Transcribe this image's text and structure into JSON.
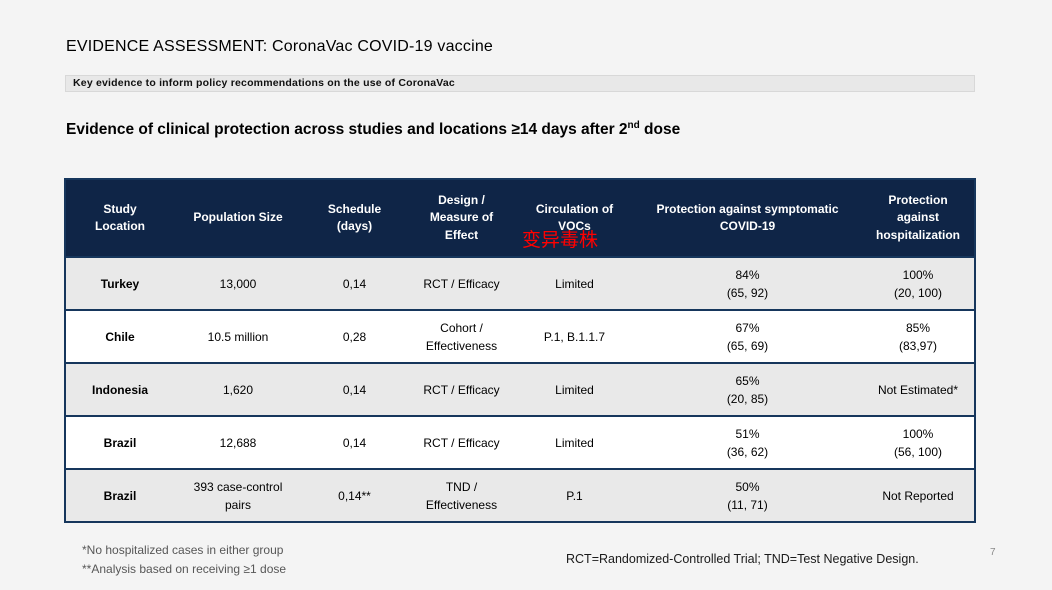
{
  "slide": {
    "title": "EVIDENCE ASSESSMENT: CoronaVac COVID-19 vaccine",
    "subtitle": "Key evidence to inform policy recommendations on the use of CoronaVac",
    "heading": {
      "text_before_sup": "Evidence of clinical protection across studies and locations ≥14 days after 2",
      "sup": "nd",
      "text_after_sup": " dose"
    },
    "page_number": "7"
  },
  "table": {
    "headers": [
      "Study\nLocation",
      "Population Size",
      "Schedule\n(days)",
      "Design /\nMeasure of\nEffect",
      "Circulation of\nVOCs",
      "Protection against symptomatic\nCOVID-19",
      "Protection\nagainst\nhospitalization"
    ],
    "voc_annotation": "变异毒株",
    "rows": [
      {
        "cells": [
          "Turkey",
          "13,000",
          "0,14",
          "RCT / Efficacy",
          "Limited",
          "84%\n(65, 92)",
          "100%\n(20, 100)"
        ]
      },
      {
        "cells": [
          "Chile",
          "10.5 million",
          "0,28",
          "Cohort / Effectiveness",
          "P.1, B.1.1.7",
          "67%\n(65, 69)",
          "85%\n(83,97)"
        ]
      },
      {
        "cells": [
          "Indonesia",
          "1,620",
          "0,14",
          "RCT / Efficacy",
          "Limited",
          "65%\n(20, 85)",
          "Not Estimated*"
        ]
      },
      {
        "cells": [
          "Brazil",
          "12,688",
          "0,14",
          "RCT / Efficacy",
          "Limited",
          "51%\n(36, 62)",
          "100%\n(56, 100)"
        ]
      },
      {
        "cells": [
          "Brazil",
          "393 case-control pairs",
          "0,14**",
          "TND / Effectiveness",
          "P.1",
          "50%\n(11, 71)",
          "Not Reported"
        ]
      }
    ]
  },
  "footnotes": {
    "line1": "*No hospitalized cases in either group",
    "line2": "**Analysis based on receiving ≥1 dose",
    "abbreviations": "RCT=Randomized-Controlled Trial; TND=Test Negative Design."
  },
  "colors": {
    "header_bg": "#0F2547",
    "table_border": "#16365C",
    "row_shaded": "#E9E9E9",
    "row_plain": "#FFFFFF",
    "annotation_red": "#FF0000",
    "subtitle_bar_bg": "#E8E8E8",
    "slide_bg": "#F4F4F4"
  }
}
